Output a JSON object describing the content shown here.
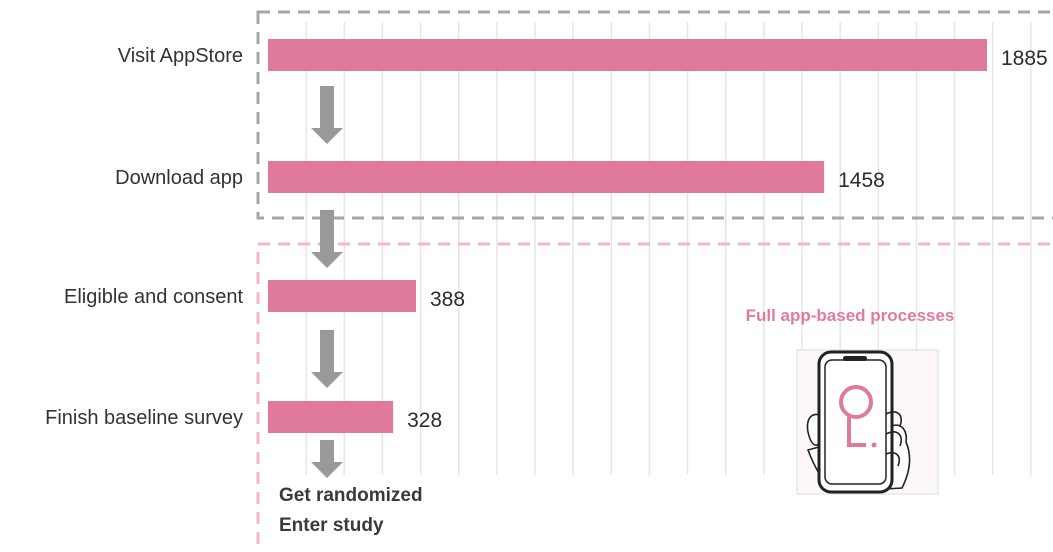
{
  "colors": {
    "bar": "#e07a9a",
    "arrow": "#999999",
    "gray_box": "#a6a6a6",
    "pink_box": "#f4b6c9",
    "region_label": "#e27aa0",
    "phone_stroke": "#222222",
    "phone_accent": "#e07a9a",
    "grid": "#e6e6e6"
  },
  "chart_data": {
    "type": "bar",
    "orientation": "horizontal",
    "categories": [
      "Visit AppStore",
      "Download app",
      "Eligible and consent",
      "Finish baseline survey"
    ],
    "values": [
      1885,
      1458,
      388,
      328
    ],
    "xlim": [
      0,
      2000
    ],
    "grid": true,
    "final_steps": [
      "Get randomized",
      "Enter study"
    ],
    "region_label": "Full app-based processes",
    "icons": [
      "down-arrow-icon",
      "phone-in-hand-icon"
    ]
  }
}
